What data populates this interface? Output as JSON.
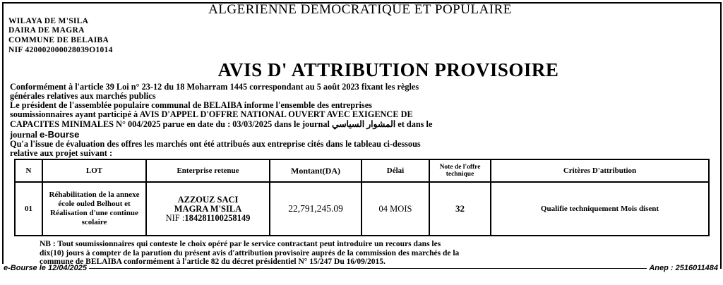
{
  "header": {
    "republic": "ALGERIENNE DEMOCRATIQUE ET POPULAIRE",
    "wilaya": "WILAYA DE M'SILA",
    "daira": "DAIRA DE MAGRA",
    "commune": "COMMUNE DE BELAIBA",
    "nif": "NIF 420002000028039O1014"
  },
  "title": "AVIS D' ATTRIBUTION PROVISOIRE",
  "body": {
    "l1": "Conformément à l'article 39 Loi n° 23-12 du 18 Moharram 1445 correspondant au 5 août 2023 fixant les règles",
    "l2": "générales relatives aux marchés publics",
    "l3": "Le président de l'assemblée populaire communal de BELAIBA informe  l'ensemble des entreprises",
    "l4": "soumissionnaires ayant participé à AVIS D'APPEL D'OFFRE NATIONAL OUVERT AVEC EXIGENCE DE",
    "l5a": "CAPACITES MINIMALES N° ",
    "l5b": "004/2025",
    "l5c": "  parue en date du  : 03/03/2025 dans le journal ",
    "l5d": "المشوار السياسي",
    "l5e": " et dans le",
    "l6a": "journal ",
    "l6b": "e-Bourse",
    "l7": "Qu'a l'issue de évaluation des offres les marchés ont été attribués aux entreprise cités dans le tableau ci-dessous",
    "l8": "relative aux projet suivant :"
  },
  "table": {
    "headers": [
      "N",
      "LOT",
      "Enterprise retenue",
      "Montant(DA)",
      "Délai",
      "Note de l'offre technique",
      "Critères D'attribution"
    ],
    "row": {
      "n": "01",
      "lot": "Réhabilitation de la annexe école ouled Belhout et Réalisation d'une continue scolaire",
      "company": "AZZOUZ SACI",
      "location": "MAGRA M'SILA",
      "nif_label": "NIF :",
      "nif": "184281100258149",
      "montant": "22,791,245.09",
      "delai": "04 MOIS",
      "note": "32",
      "criteres": "Qualifie techniquement Mois disent"
    }
  },
  "nb": [
    "NB : Tout  soumissionnaires qui  conteste le choix opéré par le service contractant peut introduire un recours dans les",
    "dix(10) jours à compter de la parution du présent avis d'attribution provisoire auprés de la commission des marchés de la",
    "commune de BELAIBA  conformément à l'article 82 du décret présidentiel N° 15/247 Du 16/09/2015."
  ],
  "footer": {
    "left": "e-Bourse le 12/04/2025",
    "right": "Anep : 2516011484"
  }
}
